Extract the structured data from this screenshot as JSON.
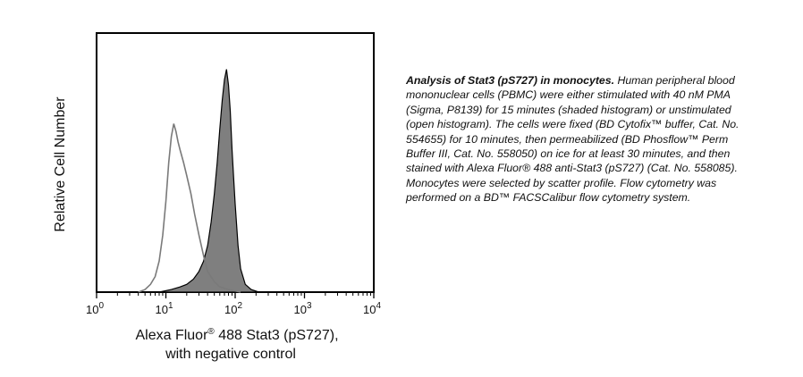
{
  "chart_data": {
    "type": "area",
    "xscale": "log",
    "xlim": [
      1,
      10000
    ],
    "xticks": [
      {
        "base": "10",
        "exp": "0",
        "value": 1
      },
      {
        "base": "10",
        "exp": "1",
        "value": 10
      },
      {
        "base": "10",
        "exp": "2",
        "value": 100
      },
      {
        "base": "10",
        "exp": "3",
        "value": 1000
      },
      {
        "base": "10",
        "exp": "4",
        "value": 10000
      }
    ],
    "ylim": [
      0,
      1
    ],
    "xlabel_line1": "Alexa Fluor",
    "xlabel_reg": "®",
    "xlabel_line1_rest": " 488 Stat3 (pS727),",
    "xlabel_line2": "with negative control",
    "ylabel": "Relative Cell Number",
    "grid": false,
    "series": [
      {
        "style": "shaded",
        "fill": "#7f7f7f",
        "points": [
          [
            8,
            0
          ],
          [
            12,
            0.01
          ],
          [
            16,
            0.02
          ],
          [
            20,
            0.03
          ],
          [
            25,
            0.05
          ],
          [
            30,
            0.08
          ],
          [
            35,
            0.12
          ],
          [
            40,
            0.18
          ],
          [
            45,
            0.27
          ],
          [
            50,
            0.38
          ],
          [
            55,
            0.5
          ],
          [
            60,
            0.63
          ],
          [
            65,
            0.74
          ],
          [
            70,
            0.82
          ],
          [
            75,
            0.86
          ],
          [
            80,
            0.8
          ],
          [
            85,
            0.7
          ],
          [
            90,
            0.55
          ],
          [
            95,
            0.44
          ],
          [
            100,
            0.34
          ],
          [
            110,
            0.18
          ],
          [
            120,
            0.09
          ],
          [
            140,
            0.03
          ],
          [
            170,
            0.01
          ],
          [
            220,
            0
          ]
        ]
      },
      {
        "style": "open",
        "stroke": "#7a7a7a",
        "points": [
          [
            4,
            0
          ],
          [
            5,
            0.01
          ],
          [
            6,
            0.03
          ],
          [
            7,
            0.06
          ],
          [
            8,
            0.12
          ],
          [
            9,
            0.22
          ],
          [
            10,
            0.35
          ],
          [
            11,
            0.5
          ],
          [
            12,
            0.6
          ],
          [
            13,
            0.65
          ],
          [
            14,
            0.62
          ],
          [
            15,
            0.58
          ],
          [
            16,
            0.55
          ],
          [
            18,
            0.5
          ],
          [
            20,
            0.45
          ],
          [
            23,
            0.38
          ],
          [
            26,
            0.3
          ],
          [
            30,
            0.22
          ],
          [
            35,
            0.14
          ],
          [
            40,
            0.08
          ],
          [
            50,
            0.04
          ],
          [
            60,
            0.02
          ],
          [
            80,
            0.01
          ],
          [
            120,
            0
          ]
        ]
      }
    ]
  },
  "caption": {
    "title": "Analysis of Stat3 (pS727) in monocytes.",
    "body": "  Human peripheral blood mononuclear cells (PBMC) were either stimulated with 40 nM PMA (Sigma, P8139) for 15 minutes (shaded histogram) or unstimulated (open histogram).  The cells were fixed (BD Cytofix™ buffer, Cat. No. 554655) for 10 minutes, then permeabilized (BD Phosflow™ Perm Buffer III, Cat. No. 558050) on ice for at least 30 minutes, and then stained with Alexa Fluor® 488 anti-Stat3 (pS727) (Cat. No. 558085).  Monocytes were selected by scatter profile. Flow cytometry was performed on a BD™ FACSCalibur flow cytometry system."
  }
}
